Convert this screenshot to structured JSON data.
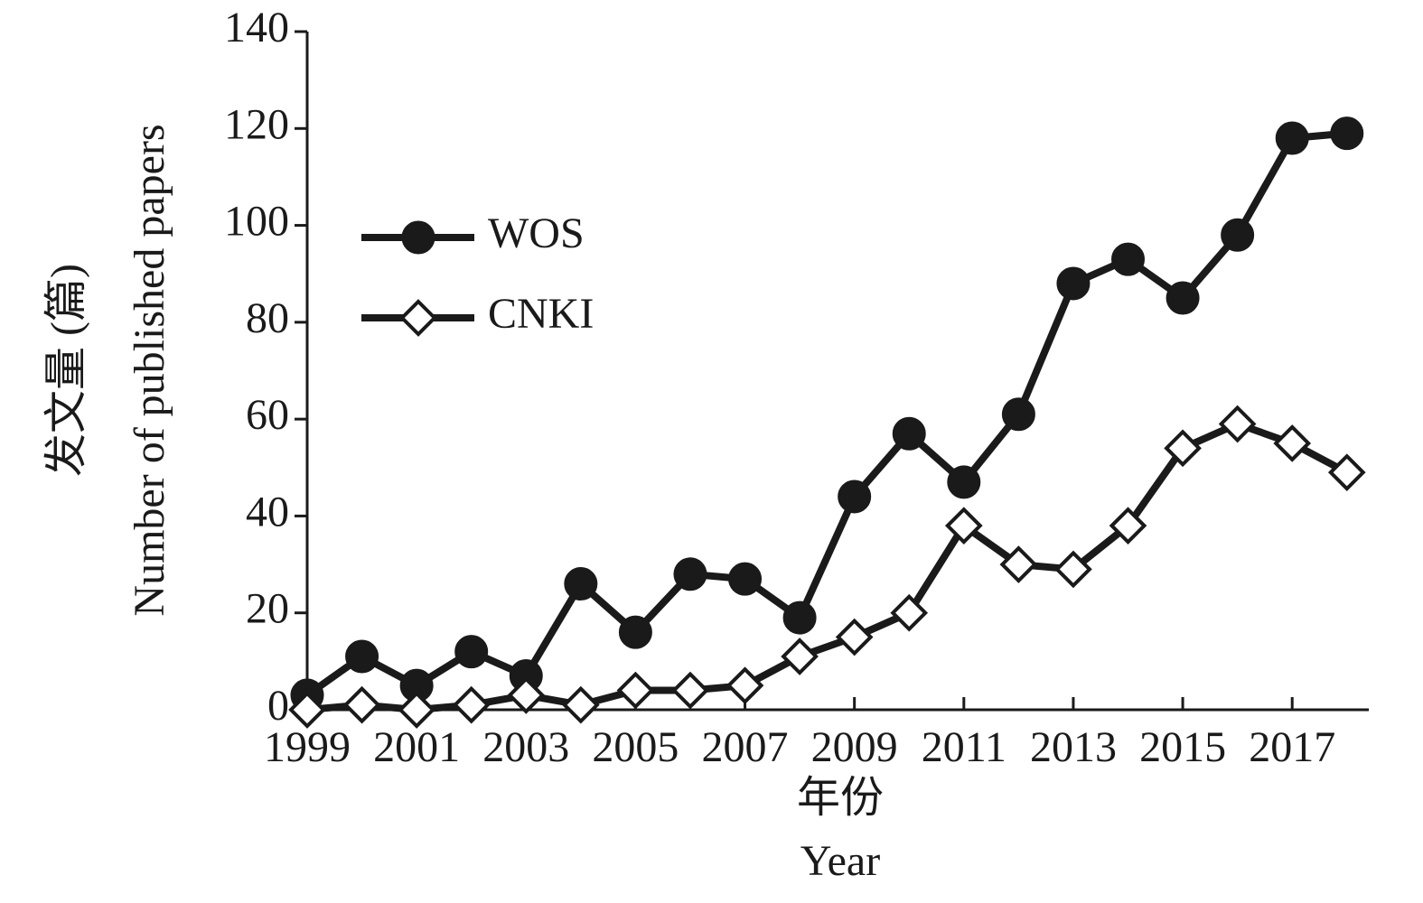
{
  "chart_data": {
    "type": "line",
    "x_label": [
      "年份",
      "Year"
    ],
    "y_label": [
      "发文量 (篇)",
      "Number of published papers"
    ],
    "x": [
      1999,
      2000,
      2001,
      2002,
      2003,
      2004,
      2005,
      2006,
      2007,
      2008,
      2009,
      2010,
      2011,
      2012,
      2013,
      2014,
      2015,
      2016,
      2017,
      2018
    ],
    "series": [
      {
        "name": "WOS",
        "color": "#1a1a1a",
        "marker": "circle",
        "values": [
          3,
          11,
          5,
          12,
          7,
          26,
          16,
          28,
          27,
          19,
          44,
          57,
          47,
          61,
          88,
          93,
          85,
          98,
          118,
          119
        ]
      },
      {
        "name": "CNKI",
        "color": "#1a1a1a",
        "marker": "diamond",
        "values": [
          0,
          1,
          0,
          1,
          3,
          1,
          4,
          4,
          5,
          11,
          15,
          20,
          38,
          30,
          29,
          38,
          54,
          59,
          55,
          49
        ]
      }
    ],
    "xlim": [
      1999,
      2018.4
    ],
    "xticks": [
      1999,
      2001,
      2003,
      2005,
      2007,
      2009,
      2011,
      2013,
      2015,
      2017
    ],
    "ylim": [
      0,
      140
    ],
    "yticks": [
      0,
      20,
      40,
      60,
      80,
      100,
      120,
      140
    ],
    "legend": "upper-left"
  }
}
